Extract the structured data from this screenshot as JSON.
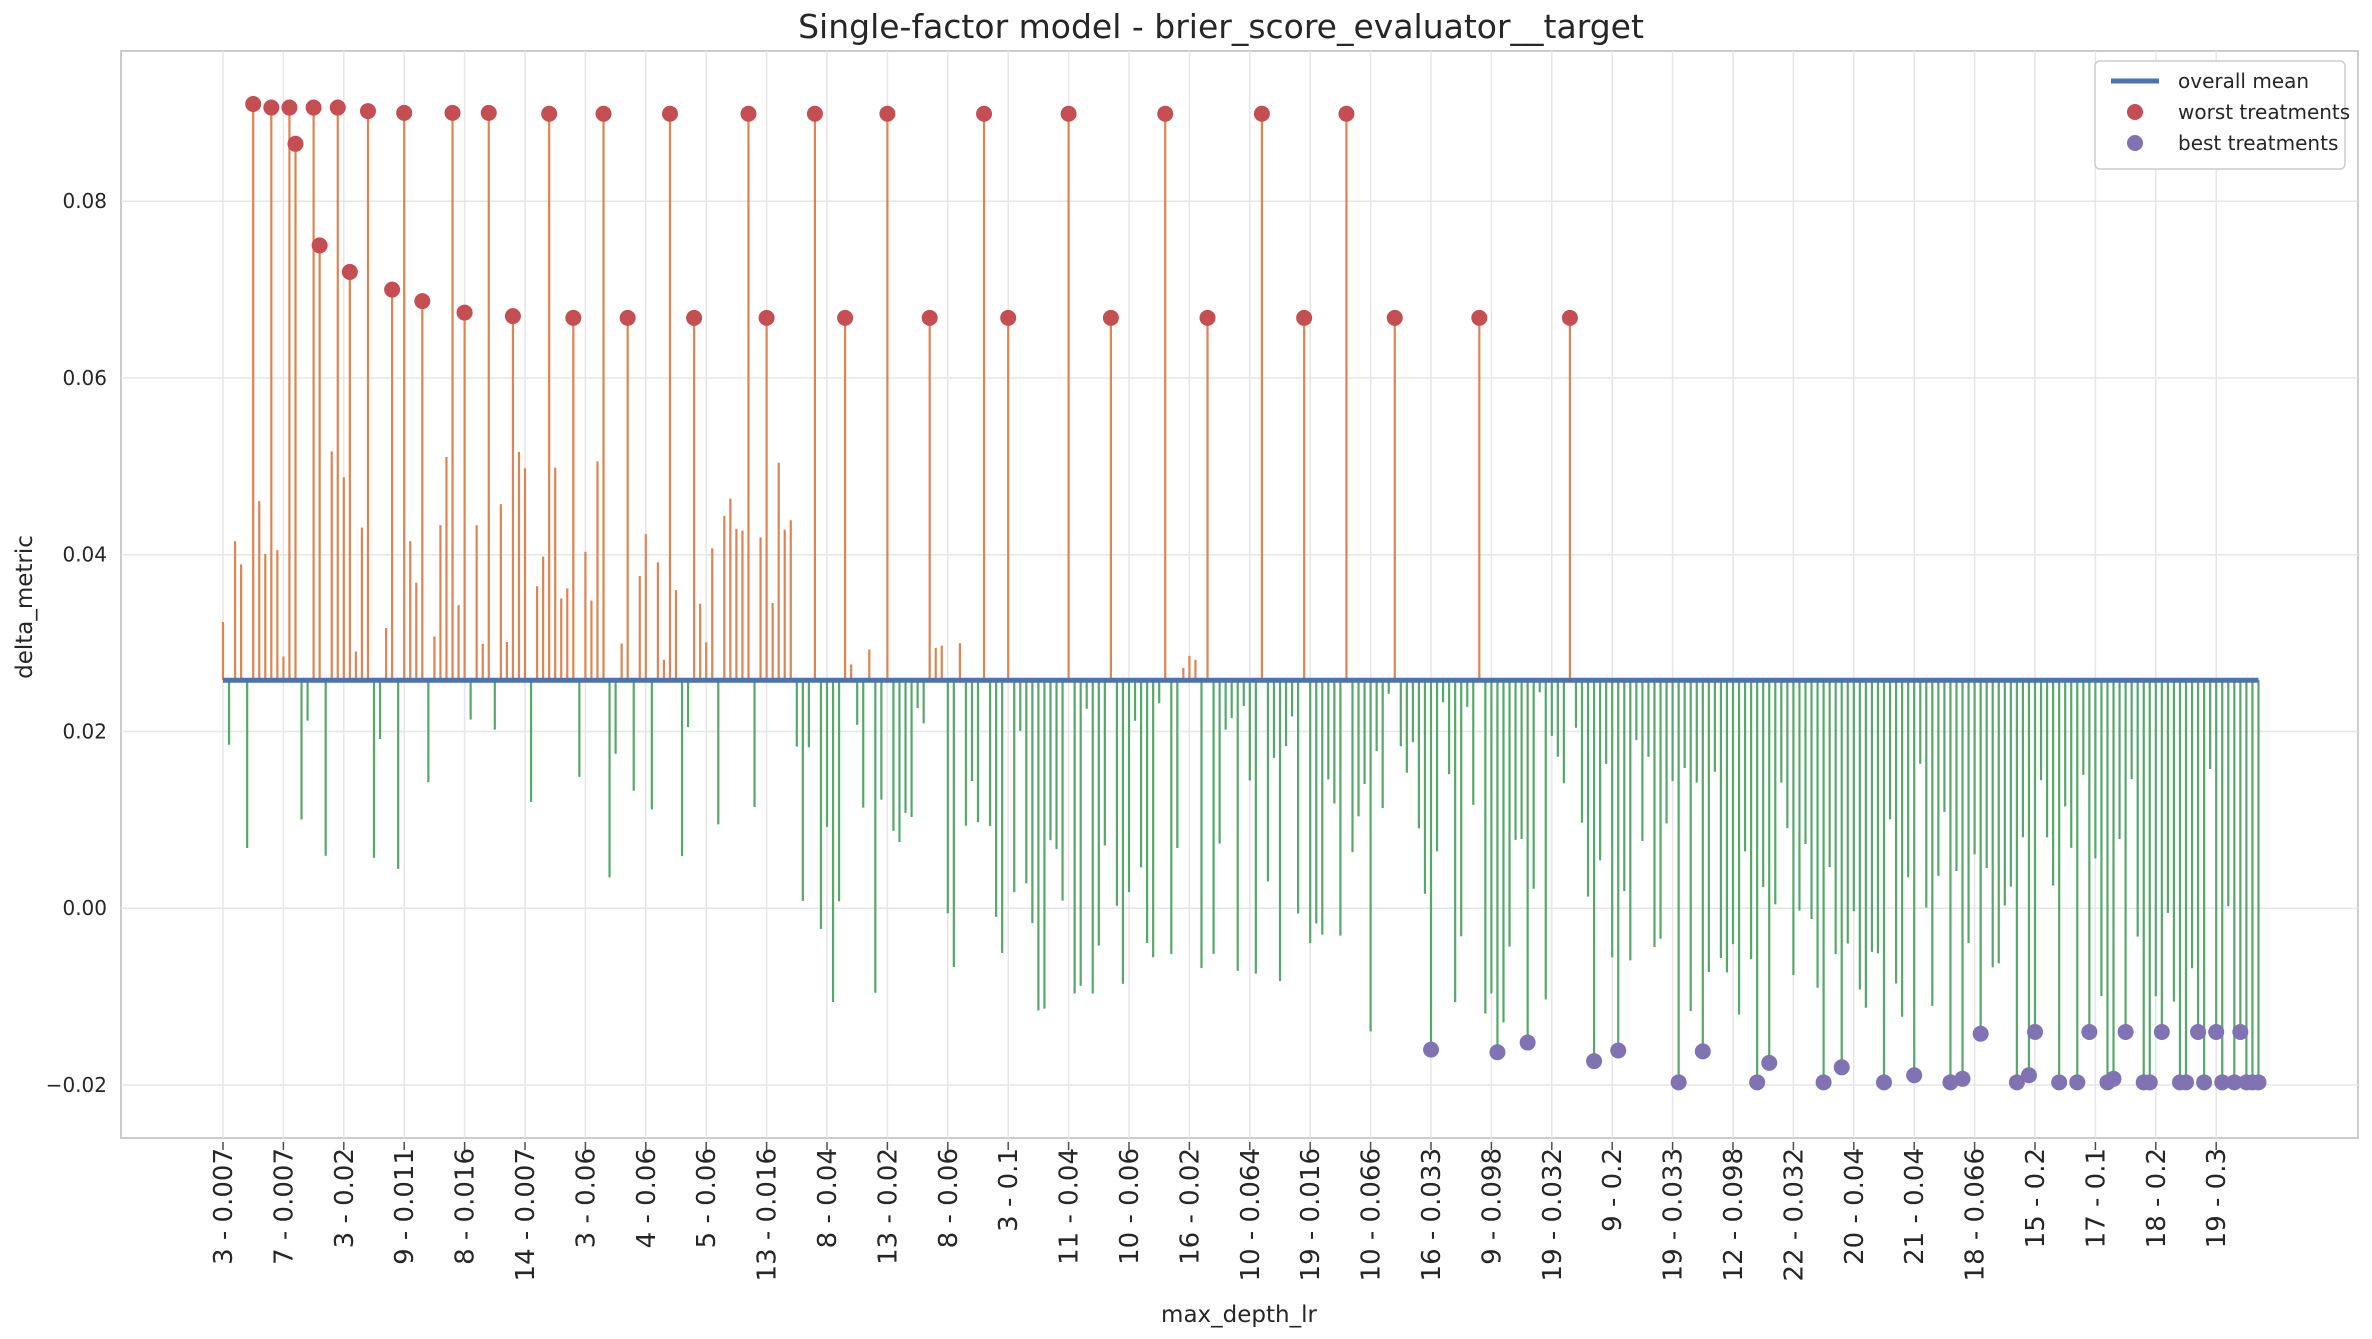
{
  "chart_data": {
    "type": "lollipop",
    "title": "Single-factor model - brier_score_evaluator__target",
    "xlabel": "max_depth_lr",
    "ylabel": "delta_metric",
    "ylim": [
      -0.026,
      0.097
    ],
    "yticks": [
      -0.02,
      0.0,
      0.02,
      0.04,
      0.06,
      0.08
    ],
    "ytick_labels": [
      "−0.02",
      "0.00",
      "0.02",
      "0.04",
      "0.06",
      "0.08"
    ],
    "grid": true,
    "legend_position": "top-right",
    "overall_mean": 0.0258,
    "n_treatments": 338,
    "xtick_positions": [
      0,
      10,
      20,
      30,
      40,
      50,
      60,
      70,
      80,
      90,
      100,
      110,
      120,
      130,
      140,
      150,
      160,
      170,
      180,
      190,
      200,
      210,
      220,
      230,
      240,
      250,
      260,
      270,
      280,
      290,
      300,
      310,
      320,
      330
    ],
    "xtick_labels": [
      "3 - 0.007",
      "7 - 0.007",
      "3 - 0.02",
      "9 - 0.011",
      "8 - 0.016",
      "14 - 0.007",
      "3 - 0.06",
      "4 - 0.06",
      "5 - 0.06",
      "13 - 0.016",
      "8 - 0.04",
      "13 - 0.02",
      "8 - 0.06",
      "3 - 0.1",
      "11 - 0.04",
      "10 - 0.06",
      "16 - 0.02",
      "10 - 0.064",
      "19 - 0.016",
      "10 - 0.066",
      "16 - 0.033",
      "9 - 0.098",
      "19 - 0.032",
      "9 - 0.2",
      "19 - 0.033",
      "12 - 0.098",
      "22 - 0.032",
      "20 - 0.04",
      "21 - 0.04",
      "18 - 0.066",
      "15 - 0.2",
      "17 - 0.1",
      "18 - 0.2",
      "19 - 0.3"
    ],
    "series": [
      {
        "name": "overall mean",
        "color": "#4c72b0"
      },
      {
        "name": "worst treatments",
        "color": "#c44e52",
        "points": [
          {
            "x": 5,
            "y": 0.091
          },
          {
            "x": 8,
            "y": 0.0906
          },
          {
            "x": 11,
            "y": 0.0906
          },
          {
            "x": 12,
            "y": 0.0865
          },
          {
            "x": 15,
            "y": 0.0906
          },
          {
            "x": 16,
            "y": 0.075
          },
          {
            "x": 19,
            "y": 0.0906
          },
          {
            "x": 21,
            "y": 0.072
          },
          {
            "x": 24,
            "y": 0.0902
          },
          {
            "x": 28,
            "y": 0.07
          },
          {
            "x": 30,
            "y": 0.09
          },
          {
            "x": 33,
            "y": 0.0687
          },
          {
            "x": 38,
            "y": 0.09
          },
          {
            "x": 40,
            "y": 0.0674
          },
          {
            "x": 44,
            "y": 0.09
          },
          {
            "x": 48,
            "y": 0.067
          },
          {
            "x": 54,
            "y": 0.0899
          },
          {
            "x": 58,
            "y": 0.0668
          },
          {
            "x": 63,
            "y": 0.0899
          },
          {
            "x": 67,
            "y": 0.0668
          },
          {
            "x": 74,
            "y": 0.0899
          },
          {
            "x": 78,
            "y": 0.0668
          },
          {
            "x": 87,
            "y": 0.0899
          },
          {
            "x": 90,
            "y": 0.0668
          },
          {
            "x": 98,
            "y": 0.0899
          },
          {
            "x": 103,
            "y": 0.0668
          },
          {
            "x": 110,
            "y": 0.0899
          },
          {
            "x": 117,
            "y": 0.0668
          },
          {
            "x": 126,
            "y": 0.0899
          },
          {
            "x": 130,
            "y": 0.0668
          },
          {
            "x": 140,
            "y": 0.0899
          },
          {
            "x": 147,
            "y": 0.0668
          },
          {
            "x": 156,
            "y": 0.0899
          },
          {
            "x": 163,
            "y": 0.0668
          },
          {
            "x": 172,
            "y": 0.0899
          },
          {
            "x": 179,
            "y": 0.0668
          },
          {
            "x": 186,
            "y": 0.0899
          },
          {
            "x": 194,
            "y": 0.0668
          },
          {
            "x": 208,
            "y": 0.0668
          },
          {
            "x": 223,
            "y": 0.0668
          }
        ]
      },
      {
        "name": "best treatments",
        "color": "#8172b3",
        "points": [
          {
            "x": 200,
            "y": -0.016
          },
          {
            "x": 211,
            "y": -0.0163
          },
          {
            "x": 216,
            "y": -0.0152
          },
          {
            "x": 227,
            "y": -0.0173
          },
          {
            "x": 231,
            "y": -0.0161
          },
          {
            "x": 241,
            "y": -0.0197
          },
          {
            "x": 245,
            "y": -0.0162
          },
          {
            "x": 254,
            "y": -0.0197
          },
          {
            "x": 256,
            "y": -0.0175
          },
          {
            "x": 265,
            "y": -0.0197
          },
          {
            "x": 268,
            "y": -0.018
          },
          {
            "x": 275,
            "y": -0.0197
          },
          {
            "x": 280,
            "y": -0.0189
          },
          {
            "x": 286,
            "y": -0.0197
          },
          {
            "x": 288,
            "y": -0.0193
          },
          {
            "x": 291,
            "y": -0.0142
          },
          {
            "x": 297,
            "y": -0.0197
          },
          {
            "x": 299,
            "y": -0.0189
          },
          {
            "x": 300,
            "y": -0.014
          },
          {
            "x": 304,
            "y": -0.0197
          },
          {
            "x": 307,
            "y": -0.0197
          },
          {
            "x": 309,
            "y": -0.014
          },
          {
            "x": 312,
            "y": -0.0197
          },
          {
            "x": 313,
            "y": -0.0193
          },
          {
            "x": 315,
            "y": -0.014
          },
          {
            "x": 318,
            "y": -0.0197
          },
          {
            "x": 319,
            "y": -0.0197
          },
          {
            "x": 321,
            "y": -0.014
          },
          {
            "x": 324,
            "y": -0.0197
          },
          {
            "x": 325,
            "y": -0.0197
          },
          {
            "x": 327,
            "y": -0.014
          },
          {
            "x": 328,
            "y": -0.0197
          },
          {
            "x": 330,
            "y": -0.014
          },
          {
            "x": 331,
            "y": -0.0197
          },
          {
            "x": 333,
            "y": -0.0197
          },
          {
            "x": 334,
            "y": -0.014
          },
          {
            "x": 335,
            "y": -0.0197
          },
          {
            "x": 336,
            "y": -0.0197
          },
          {
            "x": 337,
            "y": -0.0197
          }
        ]
      }
    ],
    "stem_colors": {
      "above_mean": "#dd8452",
      "below_mean": "#55a868"
    },
    "legend": {
      "entries": [
        "overall mean",
        "worst treatments",
        "best treatments"
      ]
    }
  }
}
